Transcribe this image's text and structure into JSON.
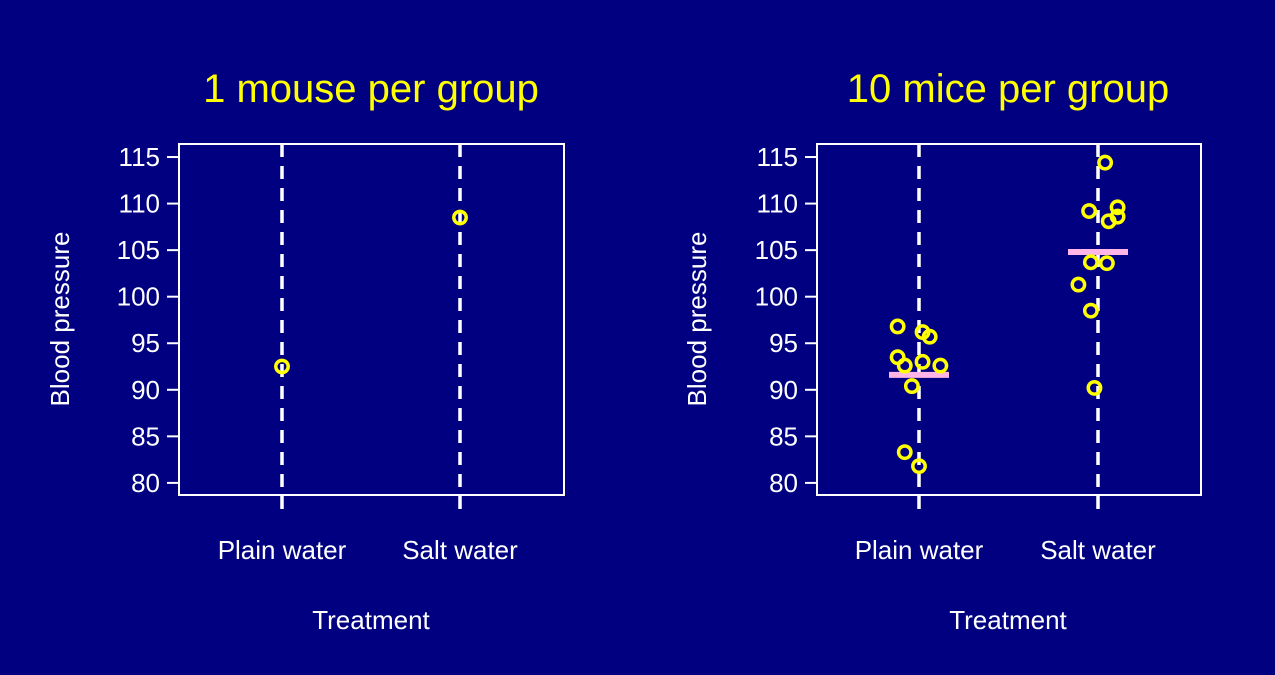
{
  "colors": {
    "background": "#000080",
    "title": "#FFFF00",
    "axis": "#FFFFFF",
    "points": "#FFFF00",
    "mean": "#FFB6E6"
  },
  "chart_data": [
    {
      "type": "scatter",
      "title": "1 mouse per group",
      "xlabel": "Treatment",
      "ylabel": "Blood pressure",
      "categories": [
        "Plain water",
        "Salt water"
      ],
      "ylim": [
        78.7,
        116.4
      ],
      "yticks": [
        80,
        85,
        90,
        95,
        100,
        105,
        110,
        115
      ],
      "points": [
        {
          "group": "Plain water",
          "x_offset": 0,
          "y": 92.5
        },
        {
          "group": "Salt water",
          "x_offset": 0,
          "y": 108.5
        }
      ],
      "group_means": [],
      "grid": false,
      "group_lines": "dashed vertical"
    },
    {
      "type": "scatter",
      "title": "10 mice per group",
      "xlabel": "Treatment",
      "ylabel": "Blood pressure",
      "categories": [
        "Plain water",
        "Salt water"
      ],
      "ylim": [
        78.7,
        116.4
      ],
      "yticks": [
        80,
        85,
        90,
        95,
        100,
        105,
        110,
        115
      ],
      "points": [
        {
          "group": "Plain water",
          "x_offset": -0.12,
          "y": 96.8
        },
        {
          "group": "Plain water",
          "x_offset": 0.02,
          "y": 96.2
        },
        {
          "group": "Plain water",
          "x_offset": 0.06,
          "y": 95.7
        },
        {
          "group": "Plain water",
          "x_offset": -0.12,
          "y": 93.5
        },
        {
          "group": "Plain water",
          "x_offset": 0.02,
          "y": 93.0
        },
        {
          "group": "Plain water",
          "x_offset": -0.08,
          "y": 92.6
        },
        {
          "group": "Plain water",
          "x_offset": 0.12,
          "y": 92.6
        },
        {
          "group": "Plain water",
          "x_offset": -0.04,
          "y": 90.4
        },
        {
          "group": "Plain water",
          "x_offset": -0.08,
          "y": 83.3
        },
        {
          "group": "Plain water",
          "x_offset": 0.0,
          "y": 81.8
        },
        {
          "group": "Salt water",
          "x_offset": 0.04,
          "y": 114.4
        },
        {
          "group": "Salt water",
          "x_offset": 0.11,
          "y": 109.6
        },
        {
          "group": "Salt water",
          "x_offset": -0.05,
          "y": 109.2
        },
        {
          "group": "Salt water",
          "x_offset": 0.11,
          "y": 108.6
        },
        {
          "group": "Salt water",
          "x_offset": 0.06,
          "y": 108.1
        },
        {
          "group": "Salt water",
          "x_offset": -0.04,
          "y": 103.7
        },
        {
          "group": "Salt water",
          "x_offset": 0.05,
          "y": 103.6
        },
        {
          "group": "Salt water",
          "x_offset": -0.11,
          "y": 101.3
        },
        {
          "group": "Salt water",
          "x_offset": -0.04,
          "y": 98.5
        },
        {
          "group": "Salt water",
          "x_offset": -0.02,
          "y": 90.2
        }
      ],
      "group_means": [
        {
          "group": "Plain water",
          "y": 91.6
        },
        {
          "group": "Salt water",
          "y": 104.8
        }
      ],
      "grid": false,
      "group_lines": "dashed vertical"
    }
  ]
}
